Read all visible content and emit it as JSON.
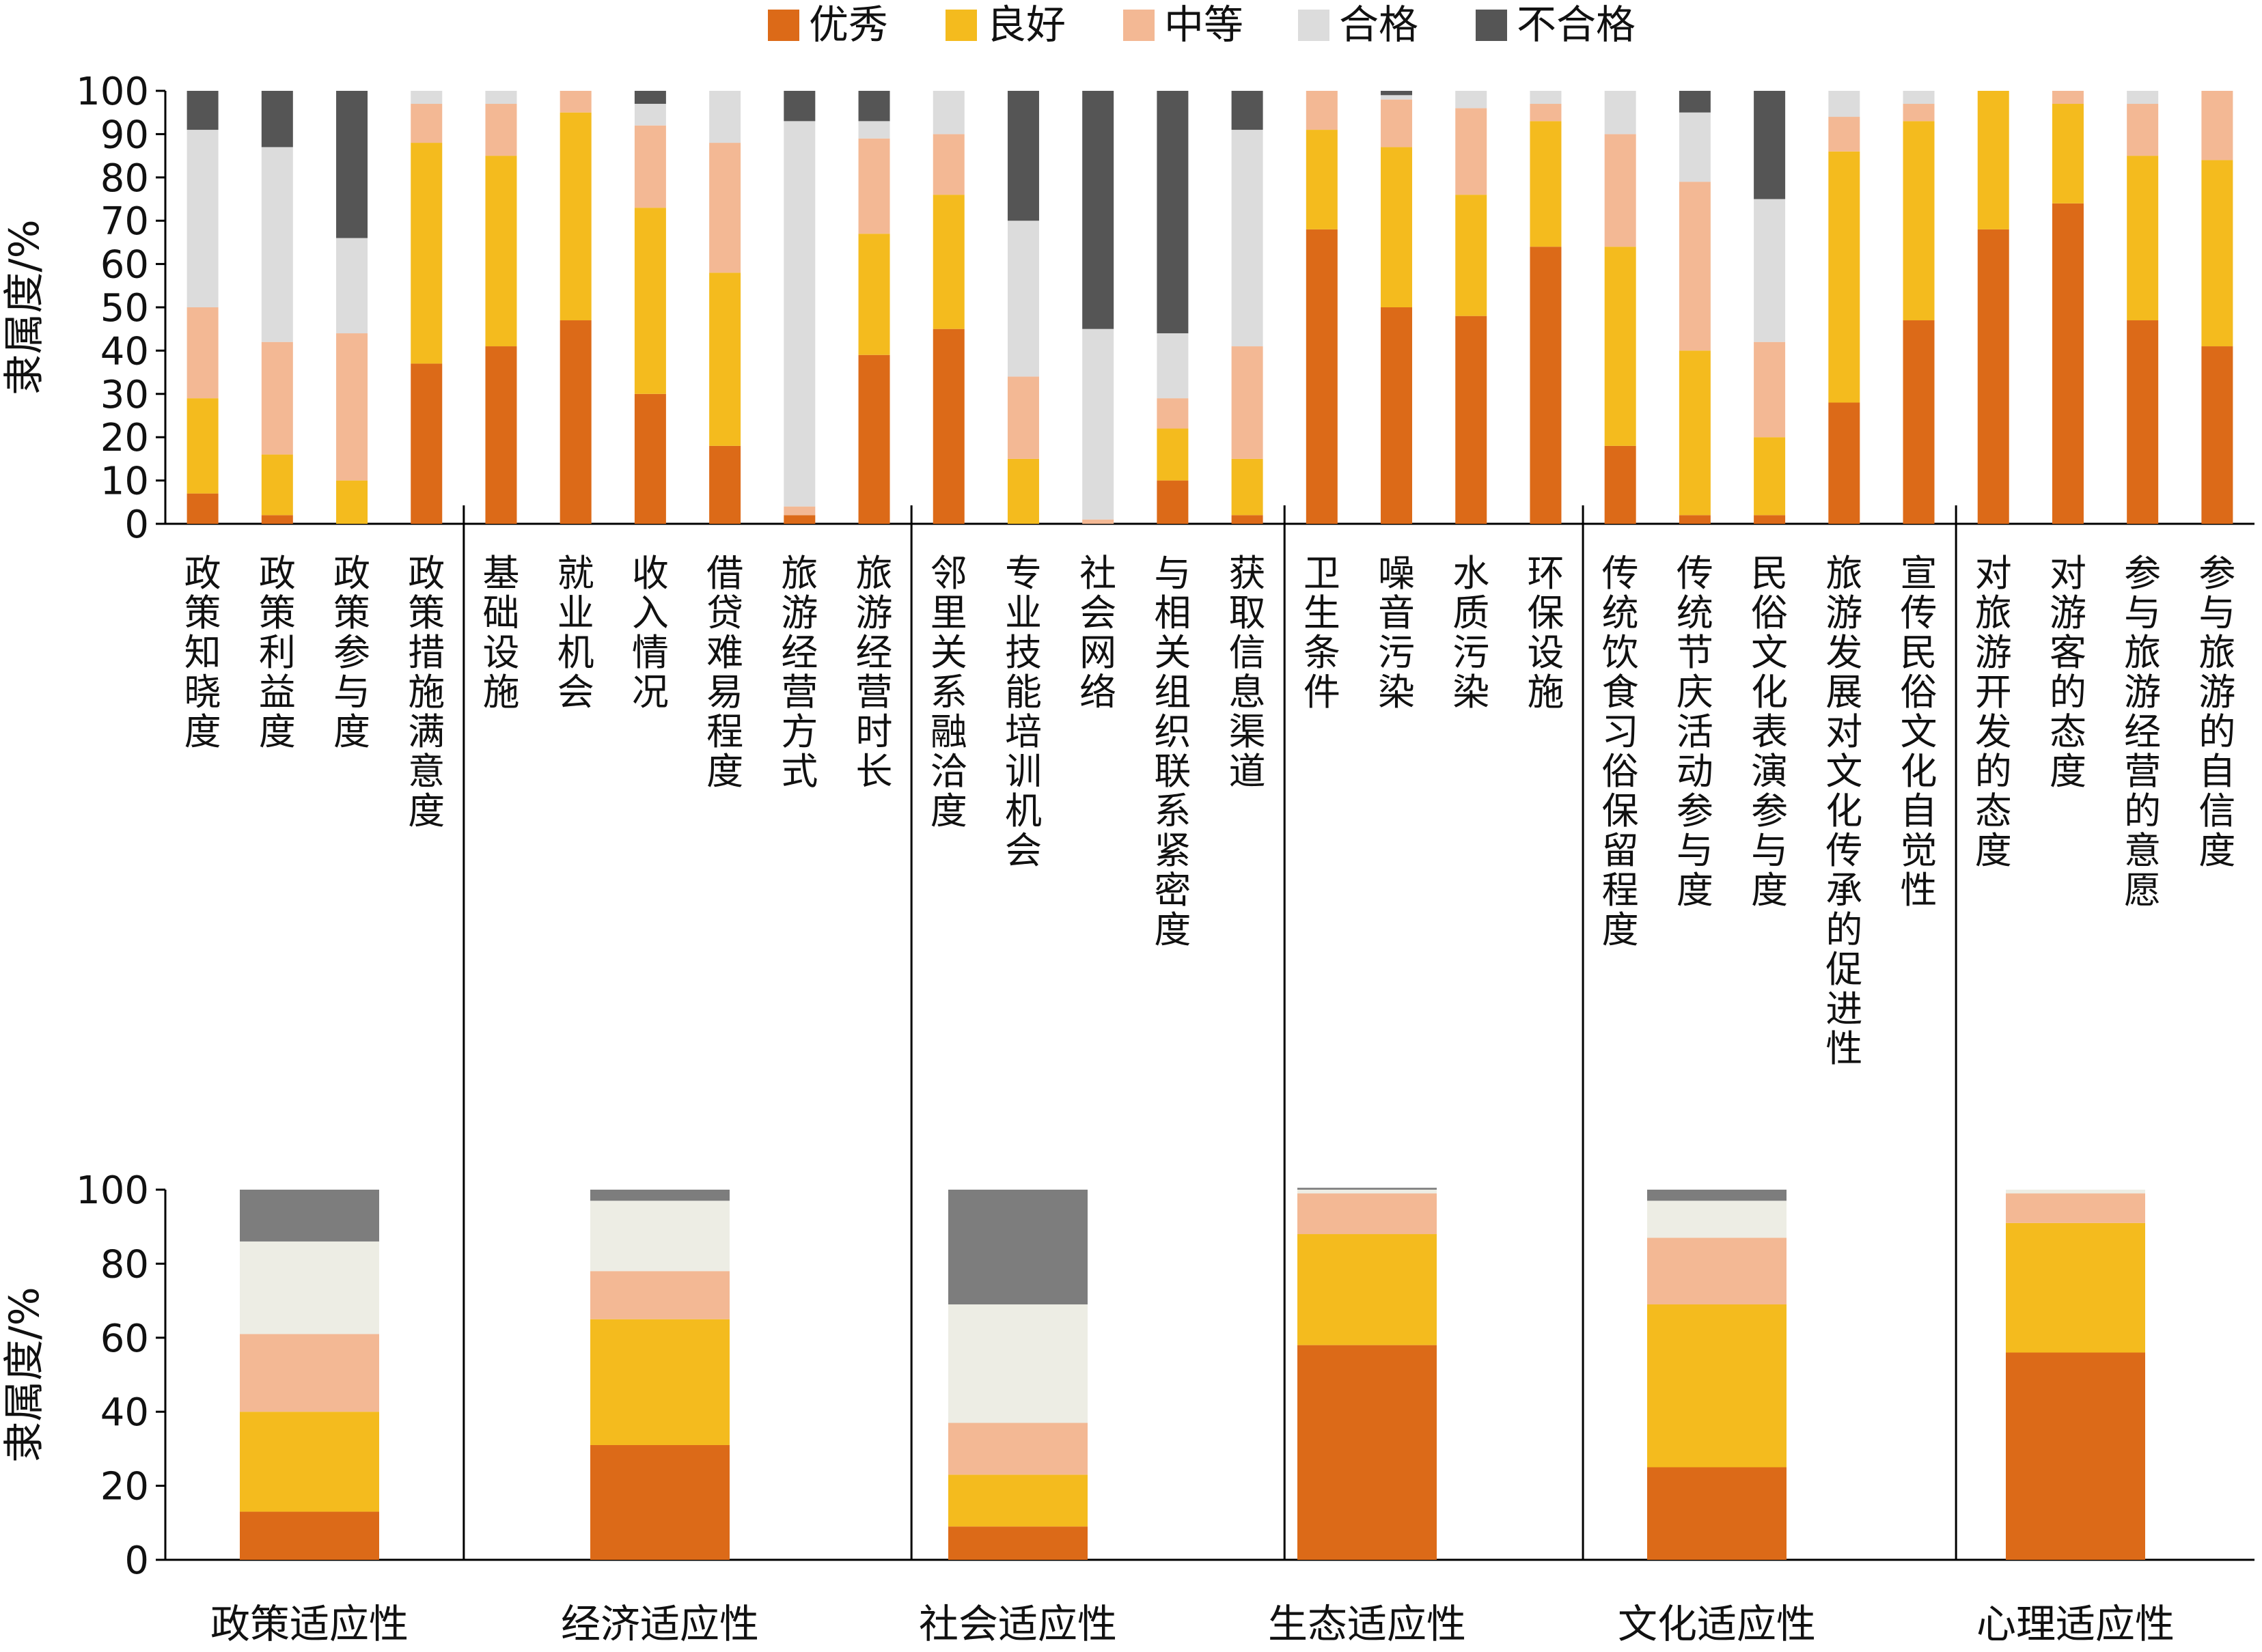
{
  "colors": {
    "优秀": "#DC6A18",
    "良好": "#F4BB1E",
    "中等": "#F3B894",
    "合格_top": "#DCDCDC",
    "合格_bottom": "#EDEDE4",
    "不合格_top": "#555555",
    "不合格_bottom": "#7D7D7D"
  },
  "chart_data": [
    {
      "type": "bar",
      "stacked": true,
      "ylabel": "隶属度/%",
      "ylim": [
        0,
        100
      ],
      "yticks": [
        0,
        10,
        20,
        30,
        40,
        50,
        60,
        70,
        80,
        90,
        100
      ],
      "legend": {
        "position": "top",
        "entries": [
          "优秀",
          "良好",
          "中等",
          "合格",
          "不合格"
        ]
      },
      "categories": [
        "政策知晓度",
        "政策利益度",
        "政策参与度",
        "政策措施满意度",
        "基础设施",
        "就业机会",
        "收入情况",
        "借贷难易程度",
        "旅游经营方式",
        "旅游经营时长",
        "邻里关系融洽度",
        "专业技能培训机会",
        "社会网络",
        "与相关组织联系紧密度",
        "获取信息渠道",
        "卫生条件",
        "噪音污染",
        "水质污染",
        "环保设施",
        "传统饮食习俗保留程度",
        "传统节庆活动参与度",
        "民俗文化表演参与度",
        "旅游发展对文化传承的促进性",
        "宣传民俗文化自觉性",
        "对旅游开发的态度",
        "对游客的态度",
        "参与旅游经营的意愿",
        "参与旅游的自信度"
      ],
      "group_sizes": [
        4,
        6,
        5,
        4,
        5,
        4
      ],
      "series": [
        {
          "name": "优秀",
          "values": [
            7,
            2,
            0,
            37,
            41,
            47,
            30,
            18,
            2,
            39,
            45,
            0,
            0,
            10,
            2,
            68,
            50,
            48,
            64,
            18,
            2,
            2,
            28,
            47,
            68,
            74,
            47,
            41
          ]
        },
        {
          "name": "良好",
          "values": [
            22,
            14,
            10,
            51,
            44,
            48,
            43,
            40,
            0,
            28,
            31,
            15,
            0,
            12,
            13,
            23,
            37,
            28,
            29,
            46,
            38,
            18,
            58,
            46,
            32,
            23,
            38,
            43
          ]
        },
        {
          "name": "中等",
          "values": [
            21,
            26,
            34,
            9,
            12,
            5,
            19,
            30,
            2,
            22,
            14,
            19,
            1,
            7,
            26,
            9,
            11,
            20,
            4,
            26,
            39,
            22,
            8,
            4,
            0,
            3,
            12,
            16
          ]
        },
        {
          "name": "合格",
          "values": [
            41,
            45,
            22,
            3,
            3,
            0,
            5,
            12,
            89,
            4,
            10,
            36,
            44,
            15,
            50,
            0,
            1,
            4,
            3,
            10,
            16,
            33,
            6,
            3,
            0,
            0,
            3,
            0
          ]
        },
        {
          "name": "不合格",
          "values": [
            9,
            13,
            34,
            0,
            0,
            0,
            3,
            0,
            7,
            7,
            0,
            30,
            55,
            56,
            9,
            0,
            1,
            0,
            0,
            0,
            5,
            25,
            0,
            0,
            0,
            0,
            0,
            0
          ]
        }
      ]
    },
    {
      "type": "bar",
      "stacked": true,
      "ylabel": "隶属度/%",
      "ylim": [
        0,
        100
      ],
      "yticks": [
        0,
        20,
        40,
        60,
        80,
        100
      ],
      "categories": [
        "政策适应性",
        "经济适应性",
        "社会适应性",
        "生态适应性",
        "文化适应性",
        "心理适应性"
      ],
      "series": [
        {
          "name": "优秀",
          "values": [
            13,
            31,
            9,
            58,
            25,
            56
          ]
        },
        {
          "name": "良好",
          "values": [
            27,
            34,
            14,
            30,
            44,
            35
          ]
        },
        {
          "name": "中等",
          "values": [
            21,
            13,
            14,
            11,
            18,
            8
          ]
        },
        {
          "name": "合格",
          "values": [
            25,
            19,
            32,
            1,
            10,
            1
          ]
        },
        {
          "name": "不合格",
          "values": [
            14,
            3,
            31,
            0.5,
            3,
            0
          ]
        }
      ]
    }
  ]
}
